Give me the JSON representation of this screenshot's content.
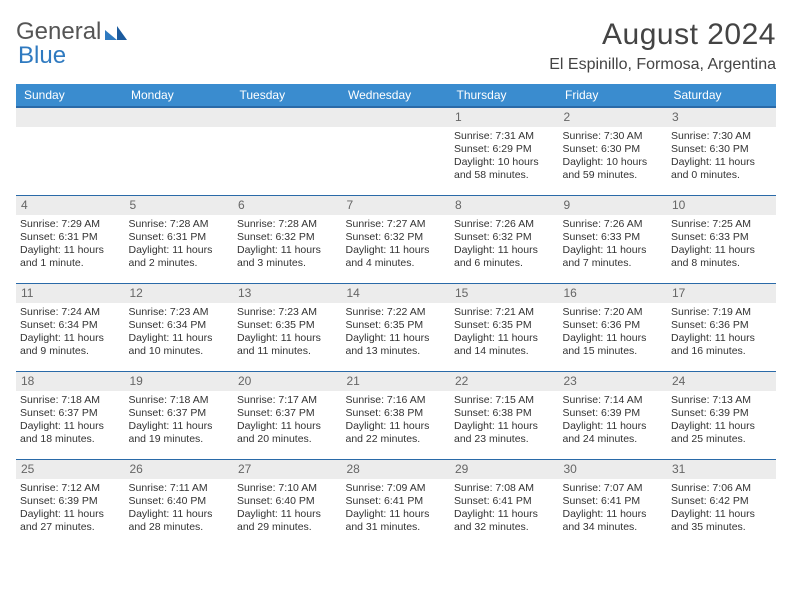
{
  "brand": {
    "part1": "General",
    "part2": "Blue"
  },
  "title": {
    "month": "August 2024",
    "location": "El Espinillo, Formosa, Argentina"
  },
  "colors": {
    "header_bg": "#3a8ccf",
    "header_text": "#ffffff",
    "rule": "#2a6aa8",
    "daynum_bg": "#ececec"
  },
  "weekdays": [
    "Sunday",
    "Monday",
    "Tuesday",
    "Wednesday",
    "Thursday",
    "Friday",
    "Saturday"
  ],
  "weeks": [
    [
      {
        "n": "",
        "l1": "",
        "l2": "",
        "l3": "",
        "l4": ""
      },
      {
        "n": "",
        "l1": "",
        "l2": "",
        "l3": "",
        "l4": ""
      },
      {
        "n": "",
        "l1": "",
        "l2": "",
        "l3": "",
        "l4": ""
      },
      {
        "n": "",
        "l1": "",
        "l2": "",
        "l3": "",
        "l4": ""
      },
      {
        "n": "1",
        "l1": "Sunrise: 7:31 AM",
        "l2": "Sunset: 6:29 PM",
        "l3": "Daylight: 10 hours",
        "l4": "and 58 minutes."
      },
      {
        "n": "2",
        "l1": "Sunrise: 7:30 AM",
        "l2": "Sunset: 6:30 PM",
        "l3": "Daylight: 10 hours",
        "l4": "and 59 minutes."
      },
      {
        "n": "3",
        "l1": "Sunrise: 7:30 AM",
        "l2": "Sunset: 6:30 PM",
        "l3": "Daylight: 11 hours",
        "l4": "and 0 minutes."
      }
    ],
    [
      {
        "n": "4",
        "l1": "Sunrise: 7:29 AM",
        "l2": "Sunset: 6:31 PM",
        "l3": "Daylight: 11 hours",
        "l4": "and 1 minute."
      },
      {
        "n": "5",
        "l1": "Sunrise: 7:28 AM",
        "l2": "Sunset: 6:31 PM",
        "l3": "Daylight: 11 hours",
        "l4": "and 2 minutes."
      },
      {
        "n": "6",
        "l1": "Sunrise: 7:28 AM",
        "l2": "Sunset: 6:32 PM",
        "l3": "Daylight: 11 hours",
        "l4": "and 3 minutes."
      },
      {
        "n": "7",
        "l1": "Sunrise: 7:27 AM",
        "l2": "Sunset: 6:32 PM",
        "l3": "Daylight: 11 hours",
        "l4": "and 4 minutes."
      },
      {
        "n": "8",
        "l1": "Sunrise: 7:26 AM",
        "l2": "Sunset: 6:32 PM",
        "l3": "Daylight: 11 hours",
        "l4": "and 6 minutes."
      },
      {
        "n": "9",
        "l1": "Sunrise: 7:26 AM",
        "l2": "Sunset: 6:33 PM",
        "l3": "Daylight: 11 hours",
        "l4": "and 7 minutes."
      },
      {
        "n": "10",
        "l1": "Sunrise: 7:25 AM",
        "l2": "Sunset: 6:33 PM",
        "l3": "Daylight: 11 hours",
        "l4": "and 8 minutes."
      }
    ],
    [
      {
        "n": "11",
        "l1": "Sunrise: 7:24 AM",
        "l2": "Sunset: 6:34 PM",
        "l3": "Daylight: 11 hours",
        "l4": "and 9 minutes."
      },
      {
        "n": "12",
        "l1": "Sunrise: 7:23 AM",
        "l2": "Sunset: 6:34 PM",
        "l3": "Daylight: 11 hours",
        "l4": "and 10 minutes."
      },
      {
        "n": "13",
        "l1": "Sunrise: 7:23 AM",
        "l2": "Sunset: 6:35 PM",
        "l3": "Daylight: 11 hours",
        "l4": "and 11 minutes."
      },
      {
        "n": "14",
        "l1": "Sunrise: 7:22 AM",
        "l2": "Sunset: 6:35 PM",
        "l3": "Daylight: 11 hours",
        "l4": "and 13 minutes."
      },
      {
        "n": "15",
        "l1": "Sunrise: 7:21 AM",
        "l2": "Sunset: 6:35 PM",
        "l3": "Daylight: 11 hours",
        "l4": "and 14 minutes."
      },
      {
        "n": "16",
        "l1": "Sunrise: 7:20 AM",
        "l2": "Sunset: 6:36 PM",
        "l3": "Daylight: 11 hours",
        "l4": "and 15 minutes."
      },
      {
        "n": "17",
        "l1": "Sunrise: 7:19 AM",
        "l2": "Sunset: 6:36 PM",
        "l3": "Daylight: 11 hours",
        "l4": "and 16 minutes."
      }
    ],
    [
      {
        "n": "18",
        "l1": "Sunrise: 7:18 AM",
        "l2": "Sunset: 6:37 PM",
        "l3": "Daylight: 11 hours",
        "l4": "and 18 minutes."
      },
      {
        "n": "19",
        "l1": "Sunrise: 7:18 AM",
        "l2": "Sunset: 6:37 PM",
        "l3": "Daylight: 11 hours",
        "l4": "and 19 minutes."
      },
      {
        "n": "20",
        "l1": "Sunrise: 7:17 AM",
        "l2": "Sunset: 6:37 PM",
        "l3": "Daylight: 11 hours",
        "l4": "and 20 minutes."
      },
      {
        "n": "21",
        "l1": "Sunrise: 7:16 AM",
        "l2": "Sunset: 6:38 PM",
        "l3": "Daylight: 11 hours",
        "l4": "and 22 minutes."
      },
      {
        "n": "22",
        "l1": "Sunrise: 7:15 AM",
        "l2": "Sunset: 6:38 PM",
        "l3": "Daylight: 11 hours",
        "l4": "and 23 minutes."
      },
      {
        "n": "23",
        "l1": "Sunrise: 7:14 AM",
        "l2": "Sunset: 6:39 PM",
        "l3": "Daylight: 11 hours",
        "l4": "and 24 minutes."
      },
      {
        "n": "24",
        "l1": "Sunrise: 7:13 AM",
        "l2": "Sunset: 6:39 PM",
        "l3": "Daylight: 11 hours",
        "l4": "and 25 minutes."
      }
    ],
    [
      {
        "n": "25",
        "l1": "Sunrise: 7:12 AM",
        "l2": "Sunset: 6:39 PM",
        "l3": "Daylight: 11 hours",
        "l4": "and 27 minutes."
      },
      {
        "n": "26",
        "l1": "Sunrise: 7:11 AM",
        "l2": "Sunset: 6:40 PM",
        "l3": "Daylight: 11 hours",
        "l4": "and 28 minutes."
      },
      {
        "n": "27",
        "l1": "Sunrise: 7:10 AM",
        "l2": "Sunset: 6:40 PM",
        "l3": "Daylight: 11 hours",
        "l4": "and 29 minutes."
      },
      {
        "n": "28",
        "l1": "Sunrise: 7:09 AM",
        "l2": "Sunset: 6:41 PM",
        "l3": "Daylight: 11 hours",
        "l4": "and 31 minutes."
      },
      {
        "n": "29",
        "l1": "Sunrise: 7:08 AM",
        "l2": "Sunset: 6:41 PM",
        "l3": "Daylight: 11 hours",
        "l4": "and 32 minutes."
      },
      {
        "n": "30",
        "l1": "Sunrise: 7:07 AM",
        "l2": "Sunset: 6:41 PM",
        "l3": "Daylight: 11 hours",
        "l4": "and 34 minutes."
      },
      {
        "n": "31",
        "l1": "Sunrise: 7:06 AM",
        "l2": "Sunset: 6:42 PM",
        "l3": "Daylight: 11 hours",
        "l4": "and 35 minutes."
      }
    ]
  ]
}
